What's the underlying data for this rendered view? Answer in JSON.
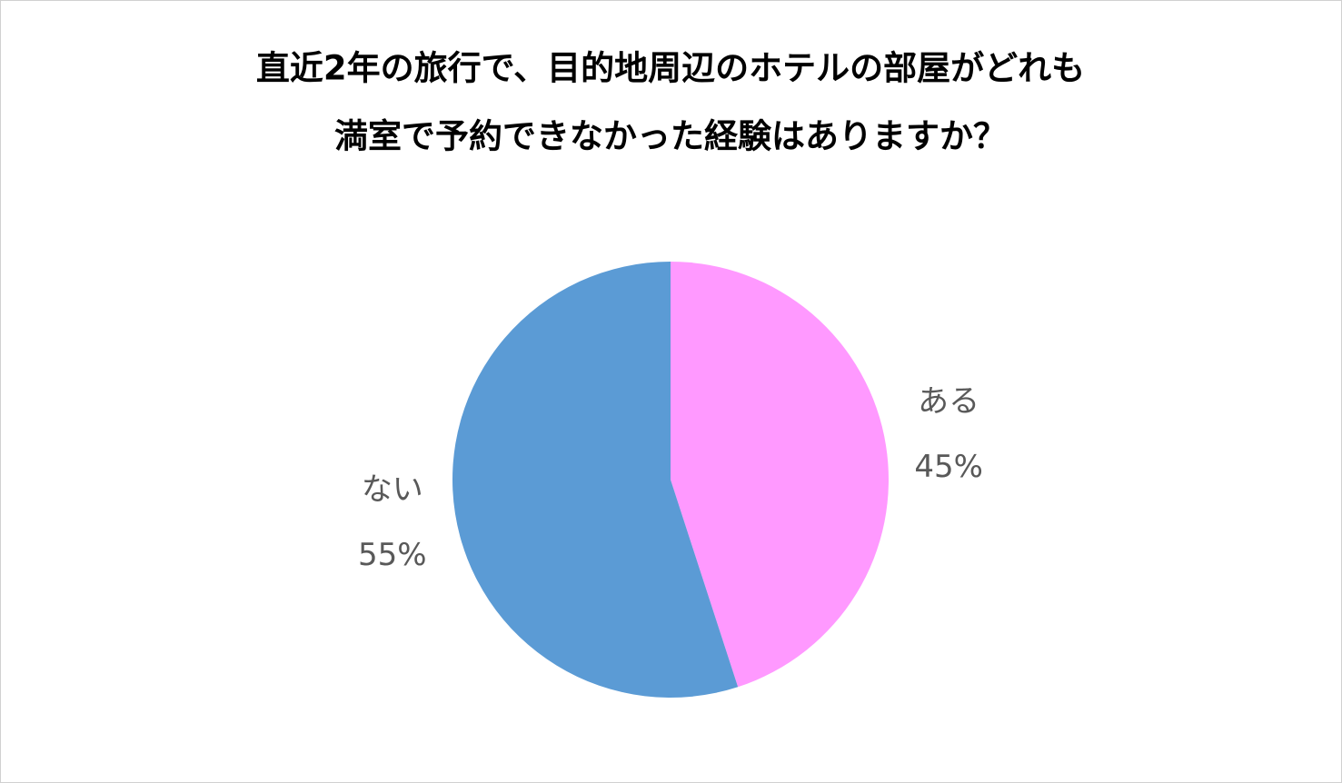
{
  "chart_data": {
    "type": "pie",
    "title": [
      "直近2年の旅行で、目的地周辺のホテルの部屋がどれも",
      "満室で予約できなかった経験はありますか？"
    ],
    "categories": [
      "ある",
      "ない"
    ],
    "values": [
      45,
      55
    ],
    "value_labels": [
      "45%",
      "55%"
    ],
    "colors": [
      "#ff99ff",
      "#5b9bd5"
    ]
  }
}
